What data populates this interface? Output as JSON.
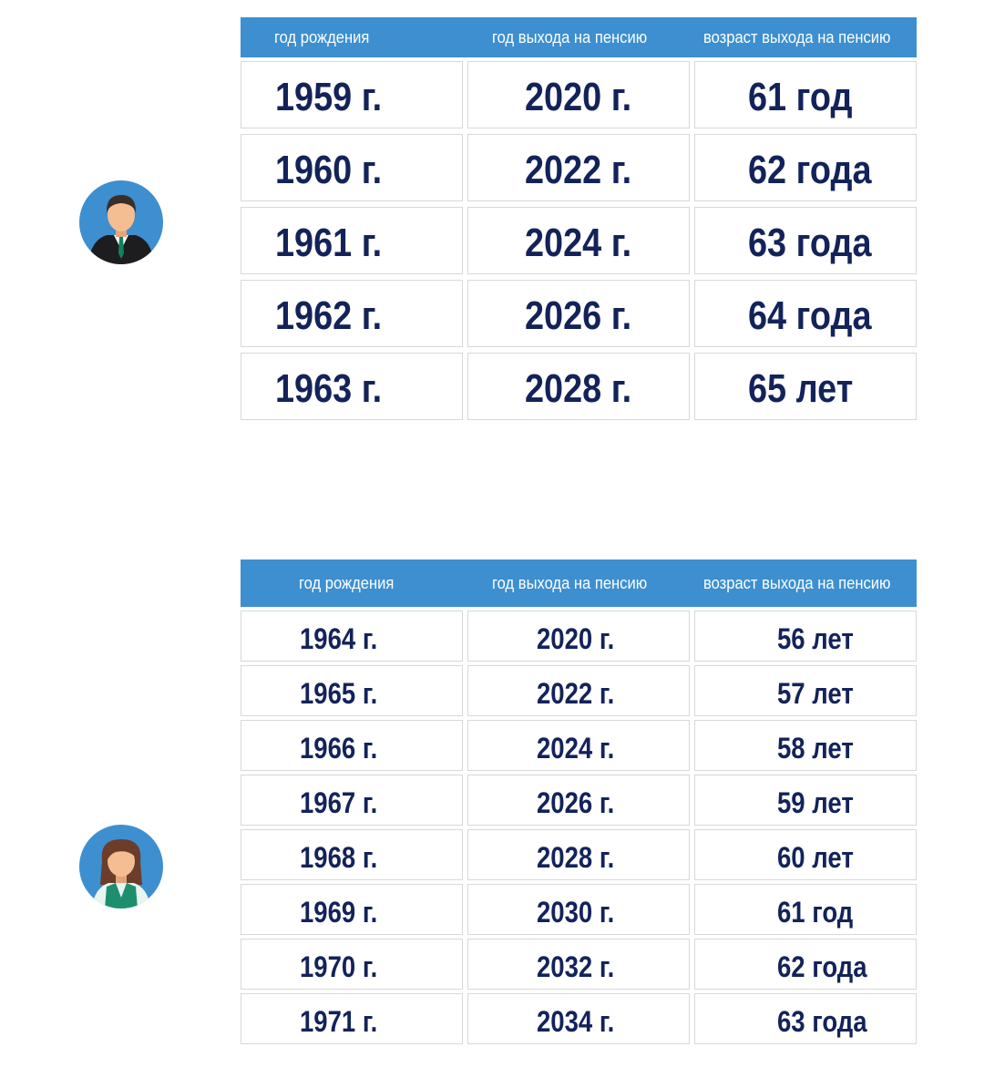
{
  "headers": {
    "birth_year": "год рождения",
    "retirement_year": "год выхода на пенсию",
    "retirement_age": "возраст выхода на пенсию"
  },
  "men": {
    "avatar_icon": "man-avatar-icon",
    "rows": [
      {
        "birth": "1959 г.",
        "retire": "2020 г.",
        "age": "61 год"
      },
      {
        "birth": "1960 г.",
        "retire": "2022 г.",
        "age": "62 года"
      },
      {
        "birth": "1961 г.",
        "retire": "2024 г.",
        "age": "63 года"
      },
      {
        "birth": "1962 г.",
        "retire": "2026 г.",
        "age": "64 года"
      },
      {
        "birth": "1963 г.",
        "retire": "2028 г.",
        "age": "65 лет"
      }
    ]
  },
  "women": {
    "avatar_icon": "woman-avatar-icon",
    "rows": [
      {
        "birth": "1964 г.",
        "retire": "2020 г.",
        "age": "56 лет"
      },
      {
        "birth": "1965 г.",
        "retire": "2022 г.",
        "age": "57 лет"
      },
      {
        "birth": "1966 г.",
        "retire": "2024 г.",
        "age": "58 лет"
      },
      {
        "birth": "1967 г.",
        "retire": "2026 г.",
        "age": "59 лет"
      },
      {
        "birth": "1968 г.",
        "retire": "2028 г.",
        "age": "60 лет"
      },
      {
        "birth": "1969 г.",
        "retire": "2030 г.",
        "age": "61 год"
      },
      {
        "birth": "1970 г.",
        "retire": "2032 г.",
        "age": "62 года"
      },
      {
        "birth": "1971 г.",
        "retire": "2034 г.",
        "age": "63 года"
      }
    ]
  },
  "colors": {
    "header_bg": "#3d8fd0",
    "header_text": "#ffffff",
    "cell_text": "#13235a",
    "cell_border": "#d8d8d8",
    "avatar_bg": "#3d8fd0"
  }
}
